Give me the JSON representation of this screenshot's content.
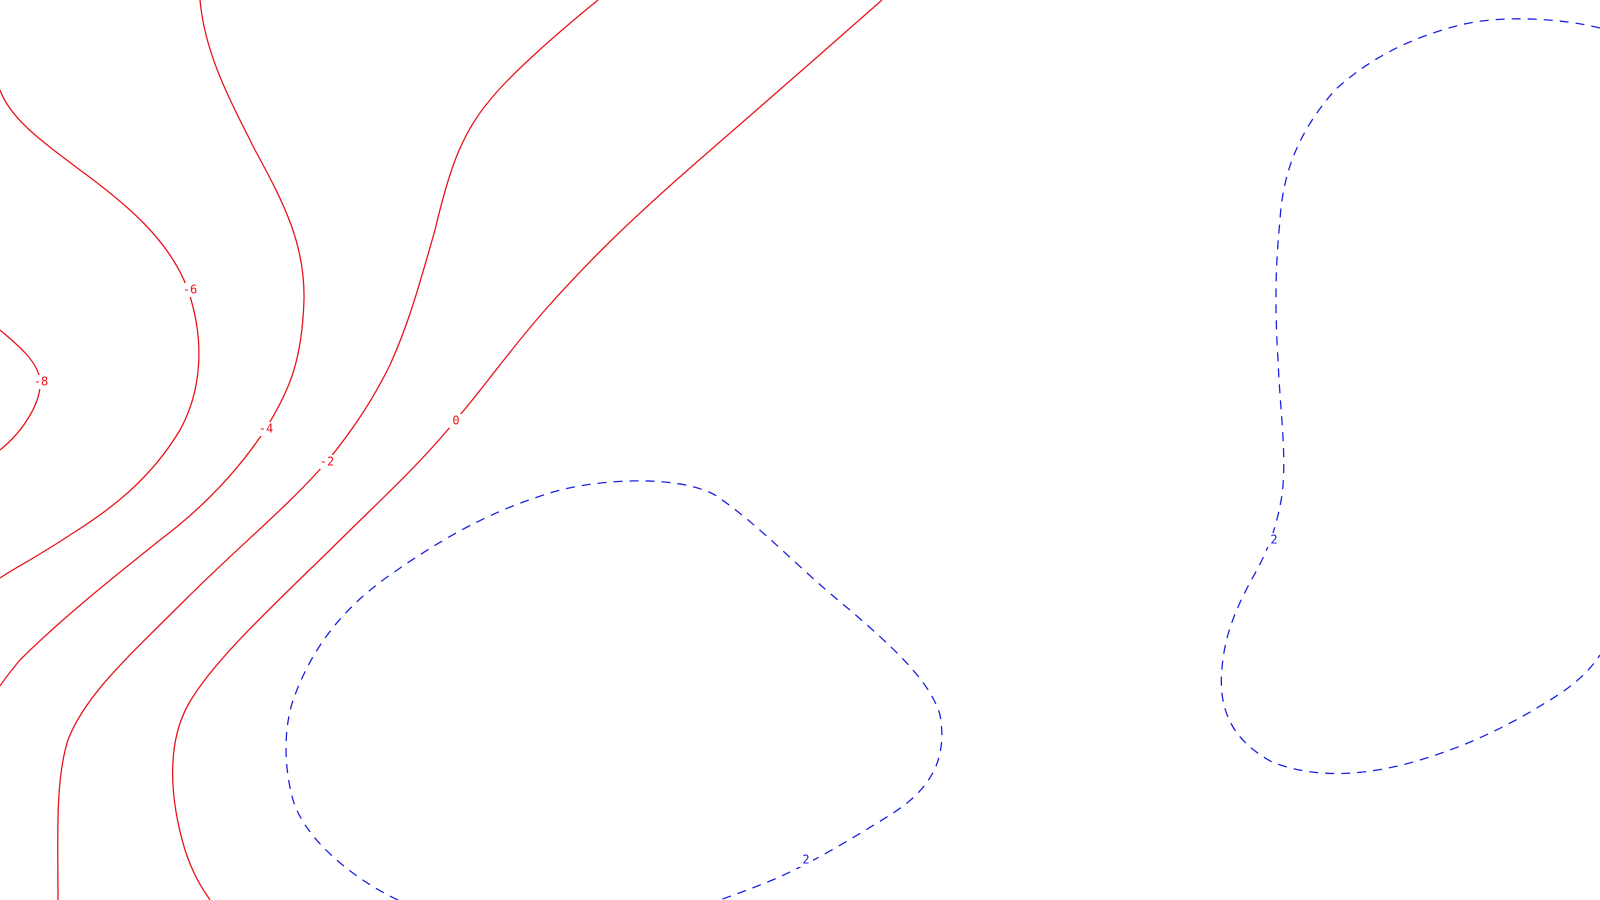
{
  "chart_data": {
    "type": "contour",
    "title": "",
    "xlabel": "",
    "ylabel": "",
    "grid": false,
    "legend": "none",
    "colors": {
      "negative": "#e8141b",
      "positive": "#1a22e0",
      "background": "#ffffff"
    },
    "levels": [
      {
        "value": -8,
        "label": "-8",
        "sign": "negative",
        "style": "solid"
      },
      {
        "value": -6,
        "label": "-6",
        "sign": "negative",
        "style": "solid"
      },
      {
        "value": -4,
        "label": "-4",
        "sign": "negative",
        "style": "solid"
      },
      {
        "value": -2,
        "label": "-2",
        "sign": "negative",
        "style": "solid"
      },
      {
        "value": 0,
        "label": "0",
        "sign": "negative",
        "style": "solid"
      },
      {
        "value": 2,
        "label": "2",
        "sign": "positive",
        "style": "dashed"
      },
      {
        "value": 2,
        "label": "2",
        "sign": "positive",
        "style": "dashed"
      }
    ]
  }
}
